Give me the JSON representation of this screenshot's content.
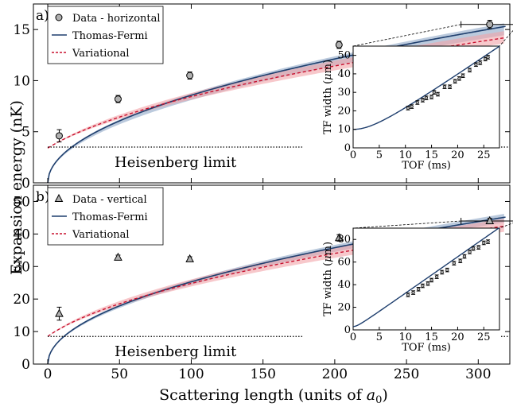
{
  "colors": {
    "tf": "#1f3f6e",
    "tf_band": "#8ea6c6",
    "var": "#c8102e",
    "var_band": "#f2a3a8",
    "marker": "#b0b0b0"
  },
  "figure": {
    "xlabel_main": "Scattering length (units of ",
    "xlabel_sym": "a",
    "xlabel_sub": "0",
    "xlabel_close": ")",
    "ylabel": "Expansion energy (nK)",
    "x_ticks": [
      "0",
      "50",
      "100",
      "150",
      "200",
      "250",
      "300"
    ]
  },
  "chart_data": [
    {
      "type": "line",
      "panel_label": "a)",
      "xlim": [
        -10,
        322
      ],
      "ylim": [
        0,
        17.5
      ],
      "y_ticks": [
        0,
        5,
        10,
        15
      ],
      "y_tick_labels": [
        "0",
        "5",
        "10",
        "15"
      ],
      "legend": {
        "placement": "top-left",
        "data_label": "Data - horizontal",
        "tf_label": "Thomas-Fermi",
        "var_label": "Variational"
      },
      "data_marker": "circle",
      "points": [
        {
          "x": 8,
          "y": 4.6,
          "yerr": 0.6
        },
        {
          "x": 49,
          "y": 8.2,
          "yerr": 0.35
        },
        {
          "x": 99,
          "y": 10.5,
          "yerr": 0.35
        },
        {
          "x": 203,
          "y": 13.5,
          "yerr": 0.35
        },
        {
          "x": 308,
          "y": 15.5,
          "yerr": 0.4,
          "xerr": 20
        }
      ],
      "tf_coef": 0.857,
      "tf_band": [
        0.81,
        0.875
      ],
      "var_offset": 3.4,
      "var_coef": 0.772,
      "var_band": [
        0.74,
        0.81
      ],
      "heisenberg": {
        "y": 3.5,
        "x_end": 178,
        "label": "Heisenberg limit"
      },
      "inset": {
        "xlim": [
          0,
          28
        ],
        "ylim": [
          0,
          55
        ],
        "x_ticks": [
          0,
          5,
          10,
          15,
          20,
          25
        ],
        "y_ticks": [
          0,
          10,
          20,
          30,
          40,
          50
        ],
        "xlabel": "TOF (ms)",
        "ylabel_pre": "TF width (",
        "ylabel_mu": "μ",
        "ylabel_post": "m)",
        "curve_w0": 10,
        "curve_slope": 1.93,
        "points": [
          {
            "x": 10.5,
            "y": 21.5
          },
          {
            "x": 11.2,
            "y": 22.3
          },
          {
            "x": 12.3,
            "y": 24.5
          },
          {
            "x": 13.3,
            "y": 25.8
          },
          {
            "x": 14.0,
            "y": 27.0
          },
          {
            "x": 15.0,
            "y": 27.5
          },
          {
            "x": 15.5,
            "y": 30.0
          },
          {
            "x": 16.2,
            "y": 29.0
          },
          {
            "x": 17.5,
            "y": 33.0
          },
          {
            "x": 18.5,
            "y": 33.0
          },
          {
            "x": 19.5,
            "y": 36.0
          },
          {
            "x": 20.3,
            "y": 37.5
          },
          {
            "x": 21.0,
            "y": 39.0
          },
          {
            "x": 22.3,
            "y": 42.0
          },
          {
            "x": 23.5,
            "y": 45.0
          },
          {
            "x": 24.3,
            "y": 46.0
          },
          {
            "x": 25.3,
            "y": 48.0
          },
          {
            "x": 25.8,
            "y": 49.0
          }
        ]
      }
    },
    {
      "type": "line",
      "panel_label": "b)",
      "xlim": [
        -10,
        322
      ],
      "ylim": [
        0,
        55
      ],
      "y_ticks": [
        0,
        10,
        20,
        30,
        40,
        50
      ],
      "y_tick_labels": [
        "0",
        "10",
        "20",
        "30",
        "40",
        "50"
      ],
      "legend": {
        "placement": "top-left",
        "data_label": "Data - vertical",
        "tf_label": "Thomas-Fermi",
        "var_label": "Variational"
      },
      "data_marker": "triangle",
      "points": [
        {
          "x": 8,
          "y": 15.5,
          "yerr": 2.0
        },
        {
          "x": 49,
          "y": 32.8,
          "yerr": 0.7
        },
        {
          "x": 99,
          "y": 32.3,
          "yerr": 0.7
        },
        {
          "x": 203,
          "y": 38.8,
          "yerr": 1.0
        },
        {
          "x": 308,
          "y": 44.0,
          "yerr": 0.8,
          "xerr": 20
        }
      ],
      "tf_coef": 2.53,
      "tf_band": [
        2.44,
        2.59
      ],
      "var_offset": 8.5,
      "var_coef": 2.33,
      "var_band": [
        2.23,
        2.46
      ],
      "heisenberg": {
        "y": 8.5,
        "x_end": 178,
        "label": "Heisenberg limit"
      },
      "inset": {
        "xlim": [
          0,
          28
        ],
        "ylim": [
          0,
          90
        ],
        "x_ticks": [
          0,
          5,
          10,
          15,
          20,
          25
        ],
        "y_ticks": [
          0,
          20,
          40,
          60,
          80
        ],
        "xlabel": "TOF (ms)",
        "ylabel_pre": "TF width (",
        "ylabel_mu": "μ",
        "ylabel_post": "m)",
        "curve_w0": 3,
        "curve_slope": 3.23,
        "points": [
          {
            "x": 10.5,
            "y": 31.0
          },
          {
            "x": 11.5,
            "y": 33.0
          },
          {
            "x": 12.5,
            "y": 36.0
          },
          {
            "x": 13.3,
            "y": 39.0
          },
          {
            "x": 14.3,
            "y": 41.0
          },
          {
            "x": 15.0,
            "y": 44.0
          },
          {
            "x": 16.0,
            "y": 47.0
          },
          {
            "x": 17.0,
            "y": 51.0
          },
          {
            "x": 18.0,
            "y": 53.0
          },
          {
            "x": 19.3,
            "y": 59.0
          },
          {
            "x": 20.5,
            "y": 61.0
          },
          {
            "x": 21.3,
            "y": 65.0
          },
          {
            "x": 22.3,
            "y": 69.0
          },
          {
            "x": 23.0,
            "y": 72.0
          },
          {
            "x": 24.0,
            "y": 73.0
          },
          {
            "x": 25.0,
            "y": 77.0
          },
          {
            "x": 25.8,
            "y": 78.0
          }
        ]
      }
    }
  ]
}
